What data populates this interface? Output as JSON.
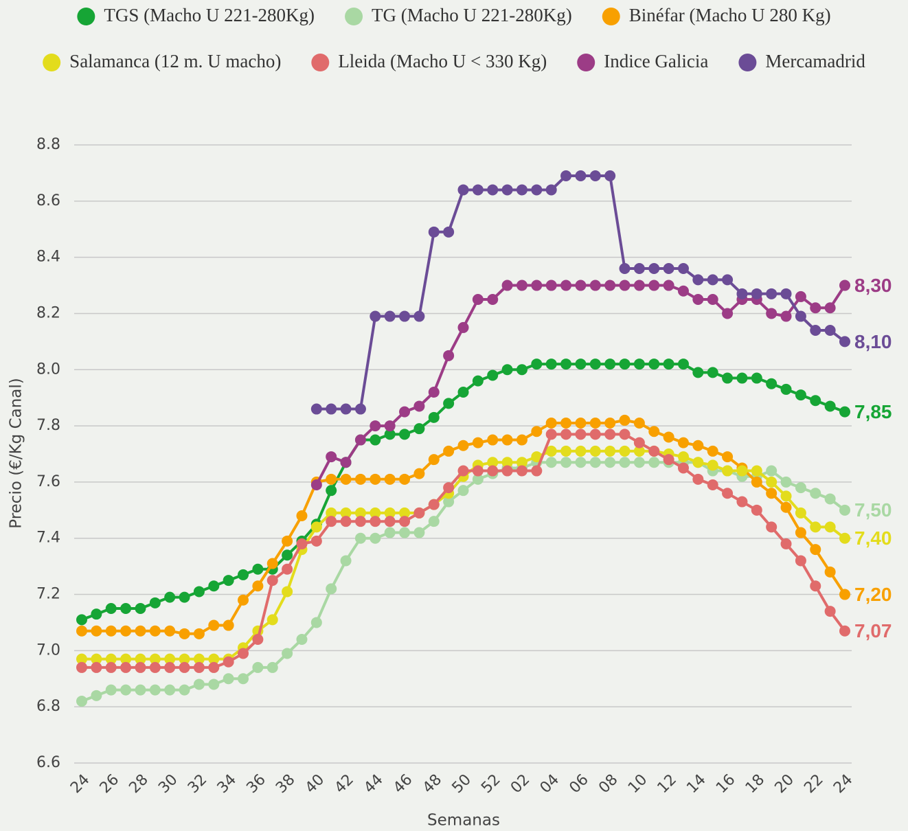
{
  "chart_data": {
    "type": "line",
    "xlabel": "Semanas",
    "ylabel": "Precio (€/Kg Canal)",
    "categories": [
      "24",
      null,
      "26",
      null,
      "28",
      null,
      "30",
      null,
      "32",
      null,
      "34",
      null,
      "36",
      null,
      "38",
      null,
      "40",
      null,
      "42",
      null,
      "44",
      null,
      "46",
      null,
      "48",
      null,
      "50",
      null,
      "52",
      null,
      "02",
      null,
      "04",
      null,
      "06",
      null,
      "08",
      null,
      "10",
      null,
      "12",
      null,
      "14",
      null,
      "16",
      null,
      "18",
      null,
      "20",
      null,
      "22",
      null,
      "24"
    ],
    "ylim": [
      6.6,
      8.8
    ],
    "yticks": [
      6.6,
      6.8,
      {
        "value": 7,
        "label": "7.0"
      },
      7.2,
      7.4,
      7.6,
      7.8,
      {
        "value": 8,
        "label": "8.0"
      },
      8.2,
      8.4,
      8.6,
      8.8
    ],
    "grid": true,
    "series": [
      {
        "name": "TGS (Macho U 221-280Kg)",
        "color": "#16a535",
        "values": [
          7.11,
          7.13,
          7.15,
          7.15,
          7.15,
          7.17,
          7.19,
          7.19,
          7.21,
          7.23,
          7.25,
          7.27,
          7.29,
          7.29,
          7.34,
          7.39,
          7.45,
          7.57,
          7.67,
          7.75,
          7.75,
          7.77,
          7.77,
          7.79,
          7.83,
          7.88,
          7.92,
          7.96,
          7.98,
          8.0,
          8.0,
          8.02,
          8.02,
          8.02,
          8.02,
          8.02,
          8.02,
          8.02,
          8.02,
          8.02,
          8.02,
          8.02,
          7.99,
          7.99,
          7.97,
          7.97,
          7.97,
          7.95,
          7.93,
          7.91,
          7.89,
          7.87,
          7.85
        ],
        "value_labels": [
          null,
          null,
          null,
          null,
          null,
          null,
          null,
          null,
          null,
          null,
          null,
          null,
          null,
          null,
          null,
          null,
          null,
          null,
          null,
          null,
          null,
          null,
          null,
          null,
          null,
          null,
          null,
          null,
          null,
          null,
          null,
          null,
          null,
          null,
          null,
          null,
          null,
          null,
          null,
          null,
          null,
          null,
          null,
          null,
          null,
          null,
          null,
          null,
          null,
          null,
          null,
          null,
          "7,85"
        ]
      },
      {
        "name": "TG (Macho U 221-280Kg)",
        "color": "#a9d8a3",
        "values": [
          6.82,
          6.84,
          6.86,
          6.86,
          6.86,
          6.86,
          6.86,
          6.86,
          6.88,
          6.88,
          6.9,
          6.9,
          6.94,
          6.94,
          6.99,
          7.04,
          7.1,
          7.22,
          7.32,
          7.4,
          7.4,
          7.42,
          7.42,
          7.42,
          7.46,
          7.53,
          7.57,
          7.61,
          7.63,
          7.65,
          7.65,
          7.67,
          7.67,
          7.67,
          7.67,
          7.67,
          7.67,
          7.67,
          7.67,
          7.67,
          7.67,
          7.67,
          7.67,
          7.64,
          7.64,
          7.62,
          7.62,
          7.64,
          7.6,
          7.58,
          7.56,
          7.54,
          7.5
        ],
        "value_labels": [
          null,
          null,
          null,
          null,
          null,
          null,
          null,
          null,
          null,
          null,
          null,
          null,
          null,
          null,
          null,
          null,
          null,
          null,
          null,
          null,
          null,
          null,
          null,
          null,
          null,
          null,
          null,
          null,
          null,
          null,
          null,
          null,
          null,
          null,
          null,
          null,
          null,
          null,
          null,
          null,
          null,
          null,
          null,
          null,
          null,
          null,
          null,
          null,
          null,
          null,
          null,
          null,
          "7,50"
        ]
      },
      {
        "name": "Binéfar (Macho U 280 Kg)",
        "color": "#f8a000",
        "values": [
          7.07,
          7.07,
          7.07,
          7.07,
          7.07,
          7.07,
          7.07,
          7.06,
          7.06,
          7.09,
          7.09,
          7.18,
          7.23,
          7.31,
          7.39,
          7.48,
          7.6,
          7.61,
          7.61,
          7.61,
          7.61,
          7.61,
          7.61,
          7.63,
          7.68,
          7.71,
          7.73,
          7.74,
          7.75,
          7.75,
          7.75,
          7.78,
          7.81,
          7.81,
          7.81,
          7.81,
          7.81,
          7.82,
          7.81,
          7.78,
          7.76,
          7.74,
          7.73,
          7.71,
          7.69,
          7.65,
          7.6,
          7.56,
          7.51,
          7.42,
          7.36,
          7.28,
          7.2
        ],
        "value_labels": [
          null,
          null,
          null,
          null,
          null,
          null,
          null,
          null,
          null,
          null,
          null,
          null,
          null,
          null,
          null,
          null,
          null,
          null,
          null,
          null,
          null,
          null,
          null,
          null,
          null,
          null,
          null,
          null,
          null,
          null,
          null,
          null,
          null,
          null,
          null,
          null,
          null,
          null,
          null,
          null,
          null,
          null,
          null,
          null,
          null,
          null,
          null,
          null,
          null,
          null,
          null,
          null,
          "7,20"
        ]
      },
      {
        "name": "Salamanca (12 m. U macho)",
        "color": "#e3dc1c",
        "values": [
          6.97,
          6.97,
          6.97,
          6.97,
          6.97,
          6.97,
          6.97,
          6.97,
          6.97,
          6.97,
          6.97,
          7.01,
          7.07,
          7.11,
          7.21,
          7.36,
          7.44,
          7.49,
          7.49,
          7.49,
          7.49,
          7.49,
          7.49,
          7.49,
          7.52,
          7.56,
          7.62,
          7.66,
          7.67,
          7.67,
          7.67,
          7.69,
          7.71,
          7.71,
          7.71,
          7.71,
          7.71,
          7.71,
          7.71,
          7.71,
          7.7,
          7.69,
          7.67,
          7.66,
          7.64,
          7.64,
          7.64,
          7.6,
          7.55,
          7.49,
          7.44,
          7.44,
          7.4
        ],
        "value_labels": [
          null,
          null,
          null,
          null,
          null,
          null,
          null,
          null,
          null,
          null,
          null,
          null,
          null,
          null,
          null,
          null,
          null,
          null,
          null,
          null,
          null,
          null,
          null,
          null,
          null,
          null,
          null,
          null,
          null,
          null,
          null,
          null,
          null,
          null,
          null,
          null,
          null,
          null,
          null,
          null,
          null,
          null,
          null,
          null,
          null,
          null,
          null,
          null,
          null,
          null,
          null,
          null,
          "7,40"
        ]
      },
      {
        "name": "Lleida (Macho U < 330 Kg)",
        "color": "#e06b6b",
        "values": [
          6.94,
          6.94,
          6.94,
          6.94,
          6.94,
          6.94,
          6.94,
          6.94,
          6.94,
          6.94,
          6.96,
          6.99,
          7.04,
          7.25,
          7.29,
          7.38,
          7.39,
          7.46,
          7.46,
          7.46,
          7.46,
          7.46,
          7.46,
          7.49,
          7.52,
          7.58,
          7.64,
          7.64,
          7.64,
          7.64,
          7.64,
          7.64,
          7.77,
          7.77,
          7.77,
          7.77,
          7.77,
          7.77,
          7.74,
          7.71,
          7.68,
          7.65,
          7.61,
          7.59,
          7.56,
          7.53,
          7.5,
          7.44,
          7.38,
          7.32,
          7.23,
          7.14,
          7.07
        ],
        "value_labels": [
          null,
          null,
          null,
          null,
          null,
          null,
          null,
          null,
          null,
          null,
          null,
          null,
          null,
          null,
          null,
          null,
          null,
          null,
          null,
          null,
          null,
          null,
          null,
          null,
          null,
          null,
          null,
          null,
          null,
          null,
          null,
          null,
          null,
          null,
          null,
          null,
          null,
          null,
          null,
          null,
          null,
          null,
          null,
          null,
          null,
          null,
          null,
          null,
          null,
          null,
          null,
          null,
          "7,07"
        ]
      },
      {
        "name": "Indice Galicia",
        "color": "#9c3c86",
        "values": [
          null,
          null,
          null,
          null,
          null,
          null,
          null,
          null,
          null,
          null,
          null,
          null,
          null,
          null,
          null,
          null,
          7.59,
          7.69,
          7.67,
          7.75,
          7.8,
          7.8,
          7.85,
          7.87,
          7.92,
          8.05,
          8.15,
          8.25,
          8.25,
          8.3,
          8.3,
          8.3,
          8.3,
          8.3,
          8.3,
          8.3,
          8.3,
          8.3,
          8.3,
          8.3,
          8.3,
          8.28,
          8.25,
          8.25,
          8.2,
          8.25,
          8.25,
          8.2,
          8.19,
          8.26,
          8.22,
          8.22,
          8.3
        ],
        "value_labels": [
          null,
          null,
          null,
          null,
          null,
          null,
          null,
          null,
          null,
          null,
          null,
          null,
          null,
          null,
          null,
          null,
          null,
          null,
          null,
          null,
          null,
          null,
          null,
          null,
          null,
          null,
          null,
          null,
          null,
          null,
          null,
          null,
          null,
          null,
          null,
          null,
          null,
          null,
          null,
          null,
          null,
          null,
          null,
          null,
          null,
          null,
          null,
          null,
          null,
          null,
          null,
          null,
          "8,30"
        ]
      },
      {
        "name": "Mercamadrid",
        "color": "#6b4c96",
        "values": [
          null,
          null,
          null,
          null,
          null,
          null,
          null,
          null,
          null,
          null,
          null,
          null,
          null,
          null,
          null,
          null,
          7.86,
          7.86,
          7.86,
          7.86,
          8.19,
          8.19,
          8.19,
          8.19,
          8.49,
          8.49,
          8.64,
          8.64,
          8.64,
          8.64,
          8.64,
          8.64,
          8.64,
          8.69,
          8.69,
          8.69,
          8.69,
          8.36,
          8.36,
          8.36,
          8.36,
          8.36,
          8.32,
          8.32,
          8.32,
          8.27,
          8.27,
          8.27,
          8.27,
          8.19,
          8.14,
          8.14,
          8.1
        ],
        "value_labels": [
          null,
          null,
          null,
          null,
          null,
          null,
          null,
          null,
          null,
          null,
          null,
          null,
          null,
          null,
          null,
          null,
          null,
          null,
          null,
          null,
          null,
          null,
          null,
          null,
          null,
          null,
          null,
          null,
          null,
          null,
          null,
          null,
          null,
          null,
          null,
          null,
          null,
          null,
          null,
          null,
          null,
          null,
          null,
          null,
          null,
          null,
          null,
          null,
          null,
          null,
          null,
          null,
          "8,10"
        ]
      }
    ]
  }
}
